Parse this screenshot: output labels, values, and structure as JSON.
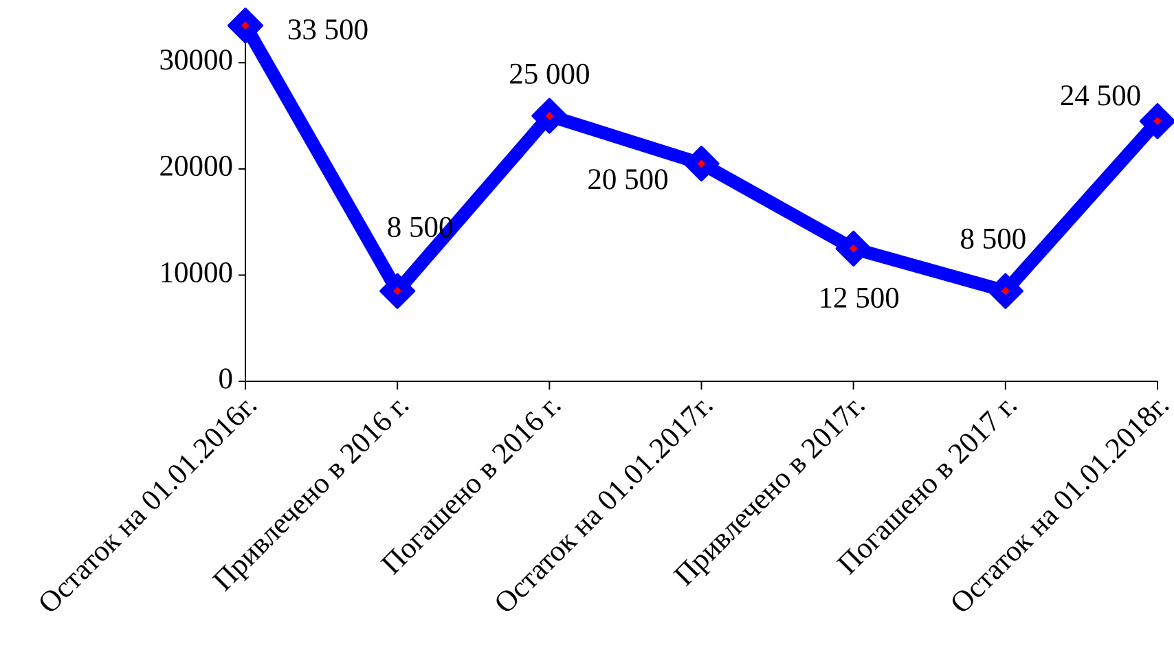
{
  "chart_data": {
    "type": "line",
    "categories": [
      "Остаток на 01.01.2016г.",
      "Привлечено в 2016 г.",
      "Погашено в 2016 г.",
      "Остаток на 01.01.2017г.",
      "Привлечено в 2017г.",
      "Погашено в 2017 г.",
      "Остаток на 01.01.2018г."
    ],
    "series": [
      {
        "color": "#0000ff",
        "marker_color": "#ff0000",
        "values": [
          33500,
          8500,
          25000,
          20500,
          12500,
          8500,
          24500
        ],
        "value_labels": [
          "33 500",
          "8 500",
          "25 000",
          "20 500",
          "12 500",
          "8 500",
          "24 500"
        ]
      }
    ],
    "ylim": [
      0,
      35000
    ],
    "yticks": [
      0,
      10000,
      20000,
      30000
    ],
    "grid": false
  }
}
